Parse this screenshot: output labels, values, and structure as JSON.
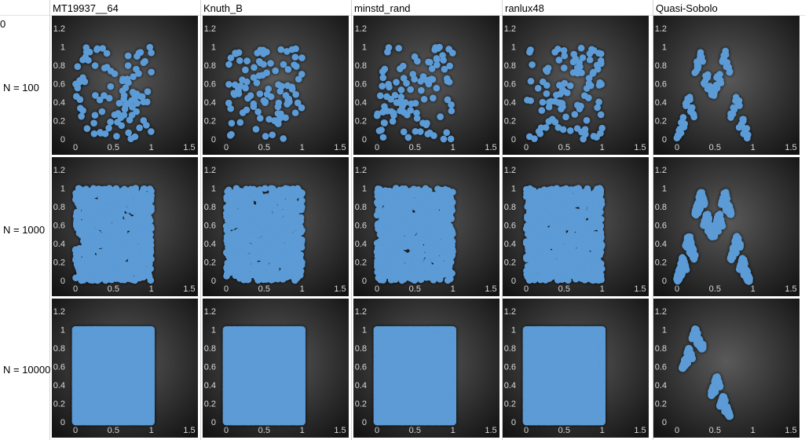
{
  "sheet": {
    "corner_cell": "0",
    "column_headers": [
      "MT19937__64",
      "Knuth_B",
      "minstd_rand",
      "ranlux48",
      "Quasi-Sobolo"
    ],
    "row_labels": [
      "N = 100",
      "N = 1000",
      "N = 10000"
    ]
  },
  "colors": {
    "marker": "#5b9bd5",
    "chart_bg_center": "#5a5a5a",
    "chart_bg_edge": "#141414",
    "tick_text": "#d9d9d9"
  },
  "chart_data": [
    {
      "type": "scatter",
      "series": "MT19937__64",
      "n": 100,
      "point_count": 100,
      "xlim": [
        0,
        1.5
      ],
      "ylim": [
        0,
        1.2
      ],
      "xticks": [
        "0",
        "0.5",
        "1",
        "1.5"
      ],
      "yticks": [
        "0",
        "0.2",
        "0.4",
        "0.6",
        "0.8",
        "1",
        "1.2"
      ],
      "distribution": "uniform-random",
      "grid": false
    },
    {
      "type": "scatter",
      "series": "Knuth_B",
      "n": 100,
      "point_count": 100,
      "xlim": [
        0,
        1.5
      ],
      "ylim": [
        0,
        1.2
      ],
      "xticks": [
        "0",
        "0.5",
        "1",
        "1.5"
      ],
      "yticks": [
        "0",
        "0.2",
        "0.4",
        "0.6",
        "0.8",
        "1",
        "1.2"
      ],
      "distribution": "uniform-random",
      "grid": false
    },
    {
      "type": "scatter",
      "series": "minstd_rand",
      "n": 100,
      "point_count": 100,
      "xlim": [
        0,
        1.5
      ],
      "ylim": [
        0,
        1.2
      ],
      "xticks": [
        "0",
        "0.5",
        "1",
        "1.5"
      ],
      "yticks": [
        "0",
        "0.2",
        "0.4",
        "0.6",
        "0.8",
        "1",
        "1.2"
      ],
      "distribution": "uniform-random",
      "grid": false
    },
    {
      "type": "scatter",
      "series": "ranlux48",
      "n": 100,
      "point_count": 100,
      "xlim": [
        0,
        1.5
      ],
      "ylim": [
        0,
        1.2
      ],
      "xticks": [
        "0",
        "0.5",
        "1",
        "1.5"
      ],
      "yticks": [
        "0",
        "0.2",
        "0.4",
        "0.6",
        "0.8",
        "1",
        "1.2"
      ],
      "distribution": "uniform-random",
      "grid": false
    },
    {
      "type": "scatter",
      "series": "Quasi-Sobolo",
      "n": 100,
      "point_count": 100,
      "xlim": [
        0,
        1.5
      ],
      "ylim": [
        0,
        1.2
      ],
      "xticks": [
        "0",
        "0.5",
        "1",
        "1.5"
      ],
      "yticks": [
        "0",
        "0.2",
        "0.4",
        "0.6",
        "0.8",
        "1",
        "1.2"
      ],
      "distribution": "quasi-sobol-diagonal-bands",
      "grid": false
    },
    {
      "type": "scatter",
      "series": "MT19937__64",
      "n": 1000,
      "point_count": 1000,
      "xlim": [
        0,
        1.5
      ],
      "ylim": [
        0,
        1.2
      ],
      "xticks": [
        "0",
        "0.5",
        "1",
        "1.5"
      ],
      "yticks": [
        "0",
        "0.2",
        "0.4",
        "0.6",
        "0.8",
        "1",
        "1.2"
      ],
      "distribution": "uniform-random",
      "grid": false
    },
    {
      "type": "scatter",
      "series": "Knuth_B",
      "n": 1000,
      "point_count": 1000,
      "xlim": [
        0,
        1.5
      ],
      "ylim": [
        0,
        1.2
      ],
      "xticks": [
        "0",
        "0.5",
        "1",
        "1.5"
      ],
      "yticks": [
        "0",
        "0.2",
        "0.4",
        "0.6",
        "0.8",
        "1",
        "1.2"
      ],
      "distribution": "uniform-random",
      "grid": false
    },
    {
      "type": "scatter",
      "series": "minstd_rand",
      "n": 1000,
      "point_count": 1000,
      "xlim": [
        0,
        1.5
      ],
      "ylim": [
        0,
        1.2
      ],
      "xticks": [
        "0",
        "0.5",
        "1",
        "1.5"
      ],
      "yticks": [
        "0",
        "0.2",
        "0.4",
        "0.6",
        "0.8",
        "1",
        "1.2"
      ],
      "distribution": "uniform-random",
      "grid": false
    },
    {
      "type": "scatter",
      "series": "ranlux48",
      "n": 1000,
      "point_count": 1000,
      "xlim": [
        0,
        1.5
      ],
      "ylim": [
        0,
        1.2
      ],
      "xticks": [
        "0",
        "0.5",
        "1",
        "1.5"
      ],
      "yticks": [
        "0",
        "0.2",
        "0.4",
        "0.6",
        "0.8",
        "1",
        "1.2"
      ],
      "distribution": "uniform-random",
      "grid": false
    },
    {
      "type": "scatter",
      "series": "Quasi-Sobolo",
      "n": 1000,
      "point_count": 1000,
      "xlim": [
        0,
        1.5
      ],
      "ylim": [
        0,
        1.2
      ],
      "xticks": [
        "0",
        "0.5",
        "1",
        "1.5"
      ],
      "yticks": [
        "0",
        "0.2",
        "0.4",
        "0.6",
        "0.8",
        "1",
        "1.2"
      ],
      "distribution": "quasi-sobol-diagonal-bands",
      "grid": false
    },
    {
      "type": "scatter",
      "series": "MT19937__64",
      "n": 10000,
      "point_count": 10000,
      "xlim": [
        0,
        1.5
      ],
      "ylim": [
        0,
        1.2
      ],
      "xticks": [
        "0",
        "0.5",
        "1",
        "1.5"
      ],
      "yticks": [
        "0",
        "0.2",
        "0.4",
        "0.6",
        "0.8",
        "1",
        "1.2"
      ],
      "distribution": "uniform-random-saturated",
      "grid": false
    },
    {
      "type": "scatter",
      "series": "Knuth_B",
      "n": 10000,
      "point_count": 10000,
      "xlim": [
        0,
        1.5
      ],
      "ylim": [
        0,
        1.2
      ],
      "xticks": [
        "0",
        "0.5",
        "1",
        "1.5"
      ],
      "yticks": [
        "0",
        "0.2",
        "0.4",
        "0.6",
        "0.8",
        "1",
        "1.2"
      ],
      "distribution": "uniform-random-saturated",
      "grid": false
    },
    {
      "type": "scatter",
      "series": "minstd_rand",
      "n": 10000,
      "point_count": 10000,
      "xlim": [
        0,
        1.5
      ],
      "ylim": [
        0,
        1.2
      ],
      "xticks": [
        "0",
        "0.5",
        "1",
        "1.5"
      ],
      "yticks": [
        "0",
        "0.2",
        "0.4",
        "0.6",
        "0.8",
        "1",
        "1.2"
      ],
      "distribution": "uniform-random-saturated",
      "grid": false
    },
    {
      "type": "scatter",
      "series": "ranlux48",
      "n": 10000,
      "point_count": 10000,
      "xlim": [
        0,
        1.5
      ],
      "ylim": [
        0,
        1.2
      ],
      "xticks": [
        "0",
        "0.5",
        "1",
        "1.5"
      ],
      "yticks": [
        "0",
        "0.2",
        "0.4",
        "0.6",
        "0.8",
        "1",
        "1.2"
      ],
      "distribution": "uniform-random-saturated",
      "grid": false
    },
    {
      "type": "scatter",
      "series": "Quasi-Sobolo",
      "n": 10000,
      "point_count": 10000,
      "xlim": [
        0,
        1.5
      ],
      "ylim": [
        0,
        1.2
      ],
      "xticks": [
        "0",
        "0.5",
        "1",
        "1.5"
      ],
      "yticks": [
        "0",
        "0.2",
        "0.4",
        "0.6",
        "0.8",
        "1",
        "1.2"
      ],
      "distribution": "quasi-sobol-two-clusters",
      "grid": false
    }
  ]
}
